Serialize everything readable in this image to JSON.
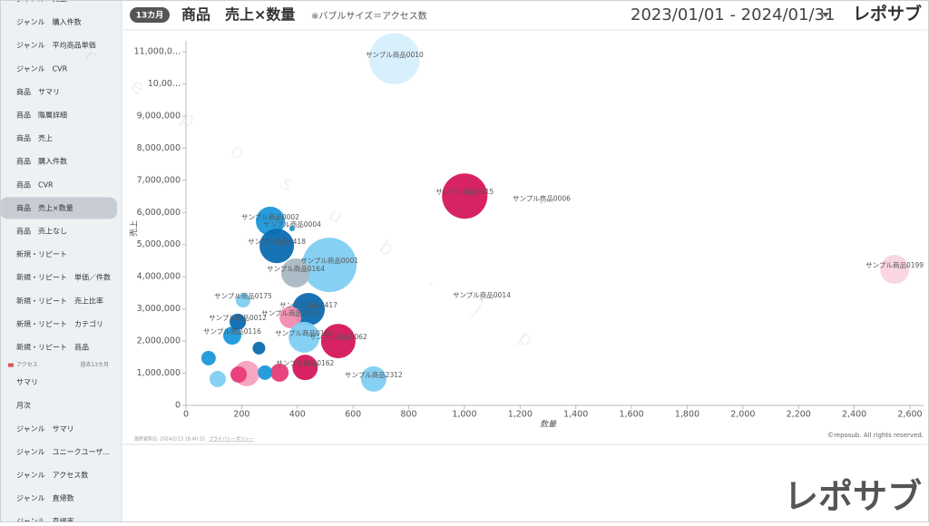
{
  "sidebar": {
    "items": [
      "ジャンル　売上",
      "ジャンル　購入件数",
      "ジャンル　平均商品単価",
      "ジャンル　CVR",
      "商品　サマリ",
      "商品　階層詳細",
      "商品　売上",
      "商品　購入件数",
      "商品　CVR",
      "商品　売上×数量",
      "商品　売上なし",
      "新規・リピート",
      "新規・リピート　単価／件数",
      "新規・リピート　売上比率",
      "新規・リピート　カテゴリ",
      "新規・リピート　商品"
    ],
    "active": 9,
    "section": {
      "title": "アクセス",
      "note": "過去13カ月"
    },
    "section_items": [
      "サマリ",
      "月次",
      "ジャンル　サマリ",
      "ジャンル　ユニークユーザ...",
      "ジャンル　アクセス数",
      "ジャンル　直帰数",
      "ジャンル　直帰率"
    ]
  },
  "header": {
    "badge": "13カ月",
    "title": "商品　売上×数量",
    "note": "※バブルサイズ＝アクセス数",
    "date_range": "2023/01/01 - 2024/01/31",
    "logo": "レポサブ"
  },
  "footer": {
    "updated": "最終更新日: 2024/2/13 18:40:32",
    "privacy": "プライバシーポリシー",
    "copyright": "©reposub. All rights reserved."
  },
  "watermark": "reposub.jp",
  "brand": "レポサブ",
  "chart_data": {
    "type": "bubble",
    "xlabel": "数量",
    "ylabel": "売上",
    "xlim": [
      0,
      2600
    ],
    "ylim": [
      0,
      11000000
    ],
    "xticks": [
      0,
      200,
      400,
      600,
      800,
      {
        "value": 1000,
        "label": "1,000"
      },
      {
        "value": 1200,
        "label": "1,200"
      },
      {
        "value": 1400,
        "label": "1,400"
      },
      {
        "value": 1600,
        "label": "1,600"
      },
      {
        "value": 1800,
        "label": "1,800"
      },
      {
        "value": 2000,
        "label": "2,000"
      },
      {
        "value": 2200,
        "label": "2,200"
      },
      {
        "value": 2400,
        "label": "2,400"
      },
      {
        "value": 2600,
        "label": "2,600"
      }
    ],
    "yticks": [
      0,
      {
        "value": 1000000,
        "label": "1,000,000"
      },
      {
        "value": 2000000,
        "label": "2,000,000"
      },
      {
        "value": 3000000,
        "label": "3,000,000"
      },
      {
        "value": 4000000,
        "label": "4,000,000"
      },
      {
        "value": 5000000,
        "label": "5,000,000"
      },
      {
        "value": 6000000,
        "label": "6,000,000"
      },
      {
        "value": 7000000,
        "label": "7,000,000"
      },
      {
        "value": 8000000,
        "label": "8,000,000"
      },
      {
        "value": 9000000,
        "label": "9,000,000"
      },
      {
        "value": 10000000,
        "label": "10,00..."
      },
      {
        "value": 11000000,
        "label": "11,000,0..."
      }
    ],
    "categories": [
      "サンプル商品0010",
      "サンプル商品0015",
      "サンプル商品0006",
      "サンプル商品0199",
      "サンプル商品0014",
      "サンプル商品0001",
      "サンプル商品0002",
      "サンプル商品0004",
      "サンプル商品0418",
      "サンプル商品0164",
      "サンプル商品0175",
      "サンプル商品0417",
      "サンプル商品2311",
      "サンプル商品0062",
      "サンプル商品0116",
      "サンプル商品2312",
      "サンプル商品0162",
      "サンプル商品0160",
      "サンプル商品0012",
      null,
      null,
      null,
      null,
      null,
      null,
      null
    ],
    "x": [
      749,
      1001,
      1277,
      2545,
      1062,
      515,
      303,
      381,
      326,
      394,
      205,
      440,
      375,
      547,
      166,
      674,
      428,
      424,
      186,
      218,
      262,
      336,
      114,
      189,
      81,
      284
    ],
    "values": [
      10780000,
      6510000,
      6300000,
      4230000,
      3300000,
      4370000,
      5730000,
      5500000,
      4960000,
      4120000,
      3270000,
      2990000,
      2740000,
      2000000,
      2170000,
      820000,
      1180000,
      2120000,
      2600000,
      990000,
      1780000,
      1020000,
      820000,
      960000,
      1470000,
      1020000
    ],
    "sizes": [
      78400,
      62500,
      100,
      25600,
      100,
      90000,
      25600,
      900,
      36100,
      25600,
      6400,
      32400,
      14400,
      36100,
      10000,
      19600,
      19600,
      28900,
      8100,
      19600,
      4900,
      10000,
      8100,
      8100,
      6400,
      6400
    ],
    "colors": [
      "#d6eefc",
      "#d5175b",
      "#7fcdf3",
      "#f9d4de",
      "#7fcdf3",
      "#7fcdf3",
      "#1c98dc",
      "#1c98dc",
      "#0b6cb0",
      "#a9b9c5",
      "#7fcdf3",
      "#0b6cb0",
      "#f28db0",
      "#d5175b",
      "#1c98dc",
      "#7fcdf3",
      "#d5175b",
      "#7fcdf3",
      "#0b6cb0",
      "#f5a0bf",
      "#0b6cb0",
      "#e83b78",
      "#7fcdf3",
      "#e83b78",
      "#1c98dc",
      "#1c98dc"
    ]
  }
}
